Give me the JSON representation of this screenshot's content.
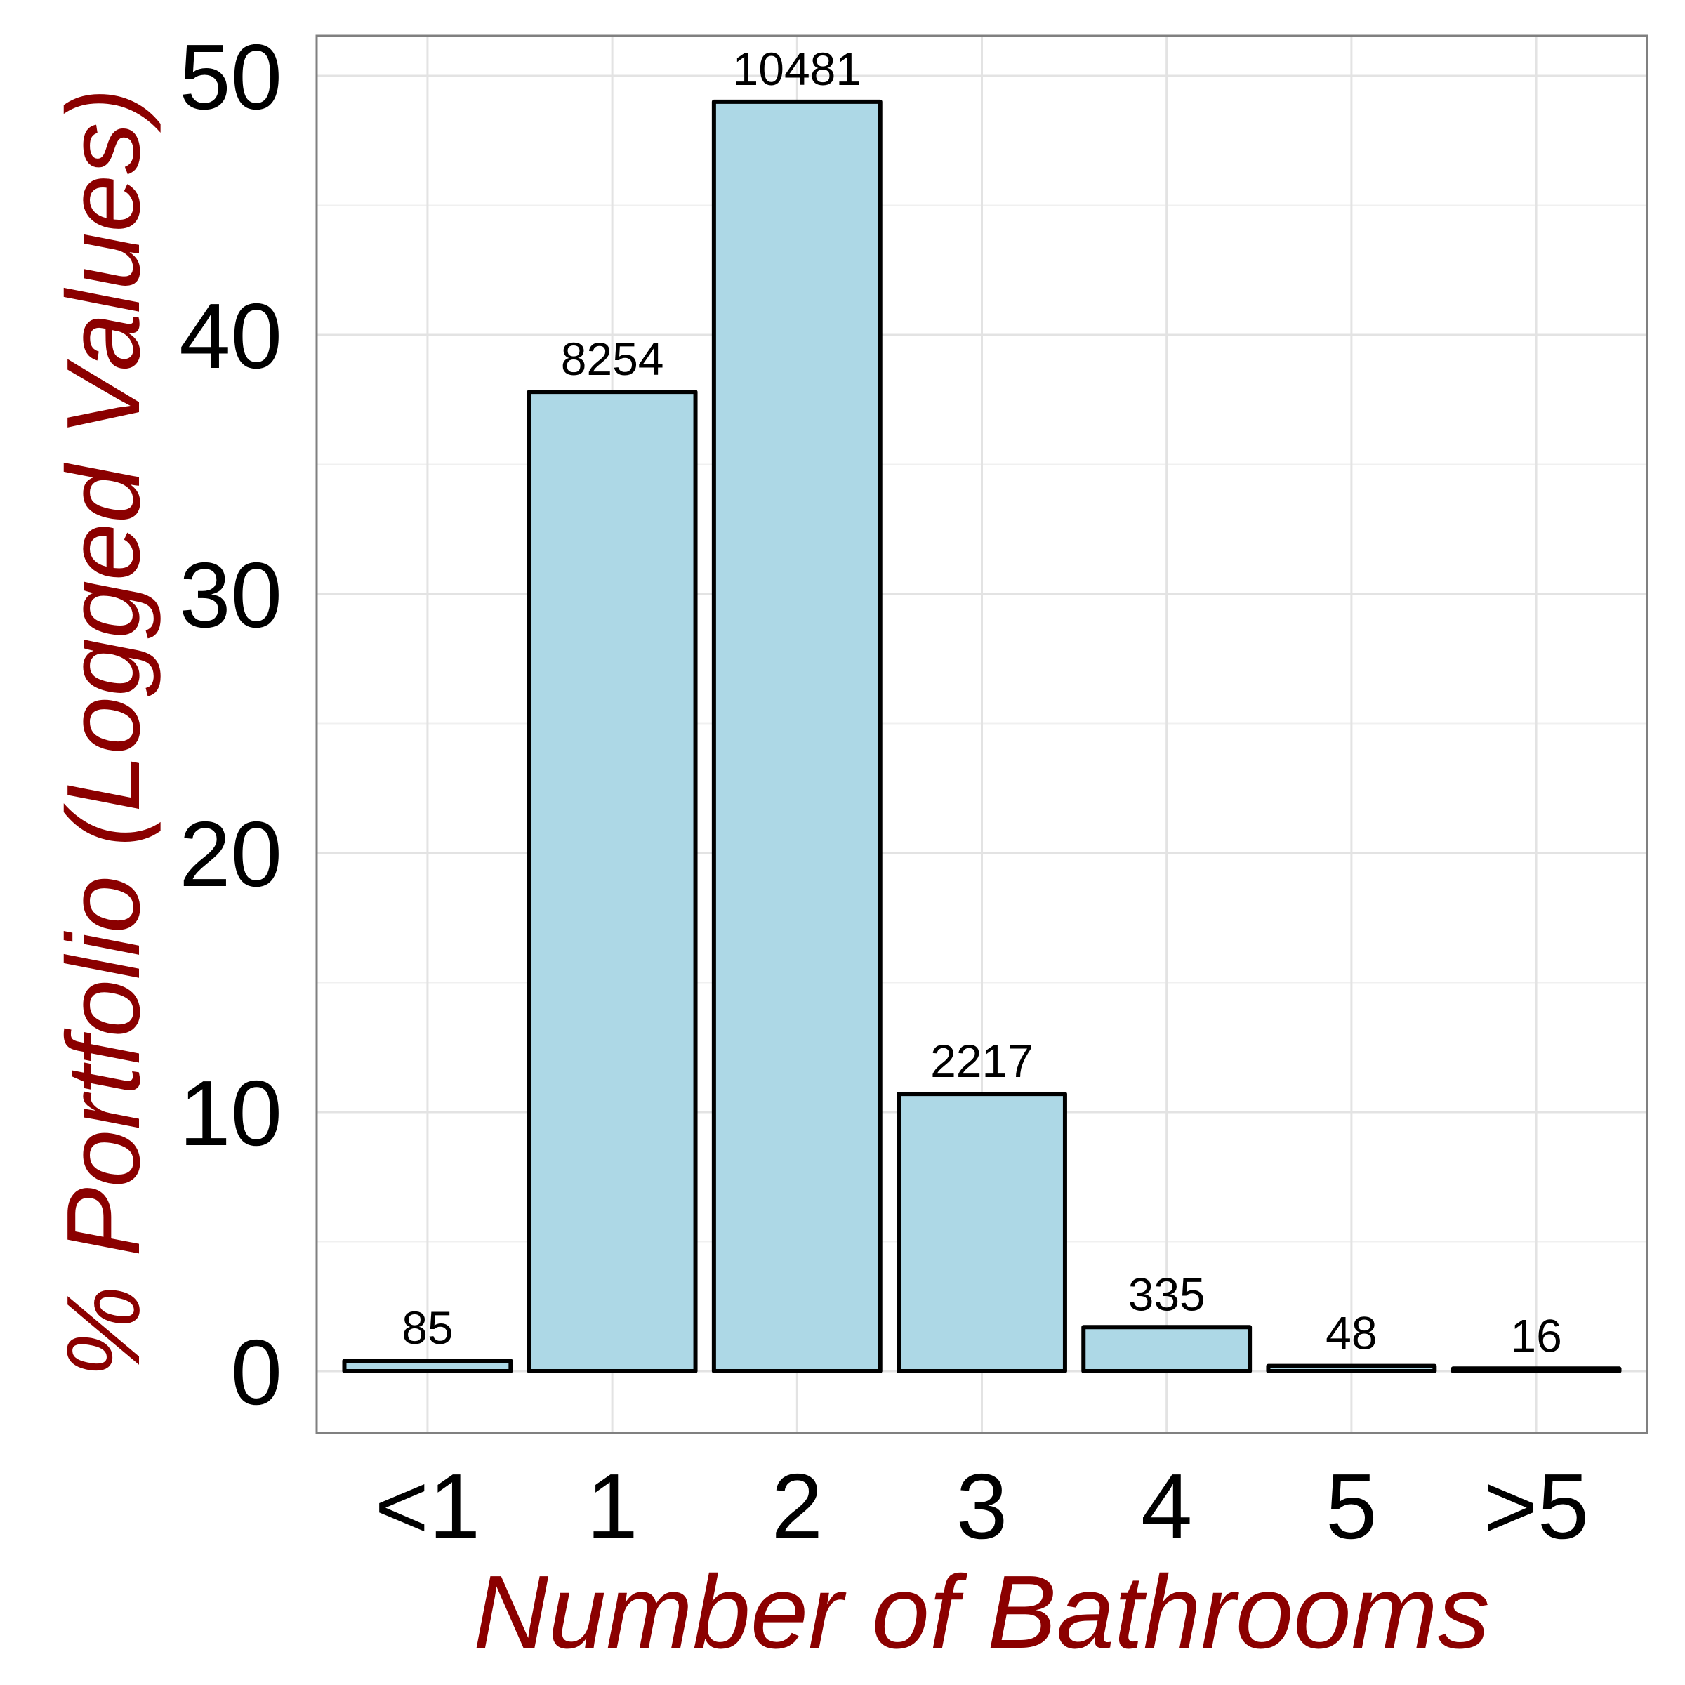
{
  "chart_data": {
    "type": "bar",
    "categories": [
      "<1",
      "1",
      "2",
      "3",
      "4",
      "5",
      ">5"
    ],
    "values": [
      0.4,
      37.8,
      49.0,
      10.7,
      1.7,
      0.2,
      0.1
    ],
    "data_labels": [
      "85",
      "8254",
      "10481",
      "2217",
      "335",
      "48",
      "16"
    ],
    "xlabel": "Number of Bathrooms",
    "ylabel": "% Portfolio (Logged Values)",
    "yticks": [
      0,
      10,
      20,
      30,
      40,
      50
    ],
    "ylim": [
      -2.4,
      51.5
    ],
    "grid": true,
    "bar_color": "#add8e6",
    "bar_edge_color": "#000000",
    "title_color": "#8b0000"
  }
}
